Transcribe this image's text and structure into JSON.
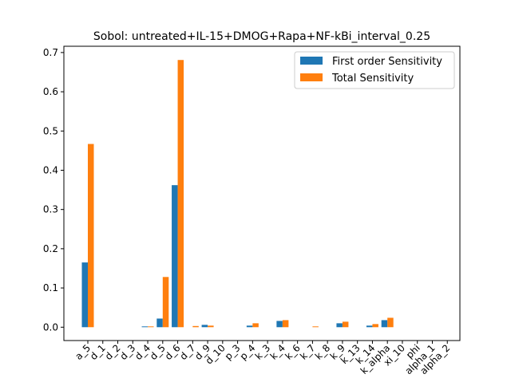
{
  "chart_data": {
    "type": "bar",
    "title": "Sobol: untreated+IL-15+DMOG+Rapa+NF-kBi_interval_0.25",
    "xlabel": "",
    "ylabel": "",
    "ylim": [
      -0.034,
      0.716
    ],
    "yticks": [
      0.0,
      0.1,
      0.2,
      0.3,
      0.4,
      0.5,
      0.6,
      0.7
    ],
    "ytick_labels": [
      "0.0",
      "0.1",
      "0.2",
      "0.3",
      "0.4",
      "0.5",
      "0.6",
      "0.7"
    ],
    "grid": false,
    "legend_position": "top-right",
    "categories": [
      "a_5",
      "d_1",
      "d_2",
      "d_3",
      "d_4",
      "d_5",
      "d_6",
      "d_7",
      "d_9",
      "d_10",
      "p_3",
      "p_4",
      "k_3",
      "k_4",
      "k_6",
      "k_7",
      "k_8",
      "k_9",
      "k_13",
      "k_14",
      "k_alpha",
      "xi_10",
      "phi",
      "alpha_1",
      "alpha_2"
    ],
    "series": [
      {
        "name": "First order Sensitivity",
        "color": "#1f77b4",
        "values": [
          0.165,
          0.0,
          0.0,
          0.0,
          0.002,
          0.022,
          0.362,
          0.0,
          0.006,
          0.0,
          0.0,
          0.004,
          0.0,
          0.016,
          0.0,
          0.0,
          0.0,
          0.01,
          0.0,
          0.004,
          0.018,
          0.0,
          0.0,
          0.0,
          0.0
        ]
      },
      {
        "name": "Total Sensitivity",
        "color": "#ff7f0e",
        "values": [
          0.467,
          0.0,
          0.0,
          0.0,
          0.002,
          0.128,
          0.681,
          0.003,
          0.004,
          0.0,
          0.0,
          0.01,
          0.0,
          0.018,
          0.0,
          0.002,
          0.0,
          0.014,
          0.0,
          0.008,
          0.024,
          0.0,
          0.0,
          0.0,
          0.0
        ]
      }
    ]
  }
}
